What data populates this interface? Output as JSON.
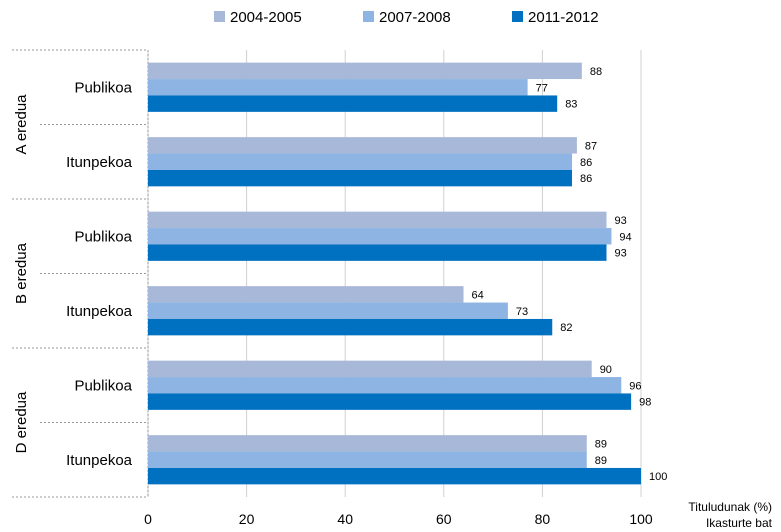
{
  "chart_data": {
    "type": "bar",
    "orientation": "horizontal",
    "groups": [
      {
        "label": "A eredua",
        "categories": [
          "Publikoa",
          "Itunpekoa"
        ]
      },
      {
        "label": "B eredua",
        "categories": [
          "Publikoa",
          "Itunpekoa"
        ]
      },
      {
        "label": "D eredua",
        "categories": [
          "Publikoa",
          "Itunpekoa"
        ]
      }
    ],
    "series": [
      {
        "name": "2004-2005",
        "color": "#a8b8d8",
        "values": [
          88,
          87,
          93,
          64,
          90,
          89
        ]
      },
      {
        "name": "2007-2008",
        "color": "#8db4e2",
        "values": [
          77,
          86,
          94,
          73,
          96,
          89
        ]
      },
      {
        "name": "2011-2012",
        "color": "#0070c0",
        "values": [
          83,
          86,
          93,
          82,
          98,
          100
        ]
      }
    ],
    "xlim": [
      0,
      100
    ],
    "xticks": [
      "0",
      "20",
      "40",
      "60",
      "80",
      "100"
    ],
    "xlabel_line1": "Tituludunak (%)",
    "xlabel_line2": "Ikasturte bat",
    "grid": true,
    "legend_position": "top"
  }
}
